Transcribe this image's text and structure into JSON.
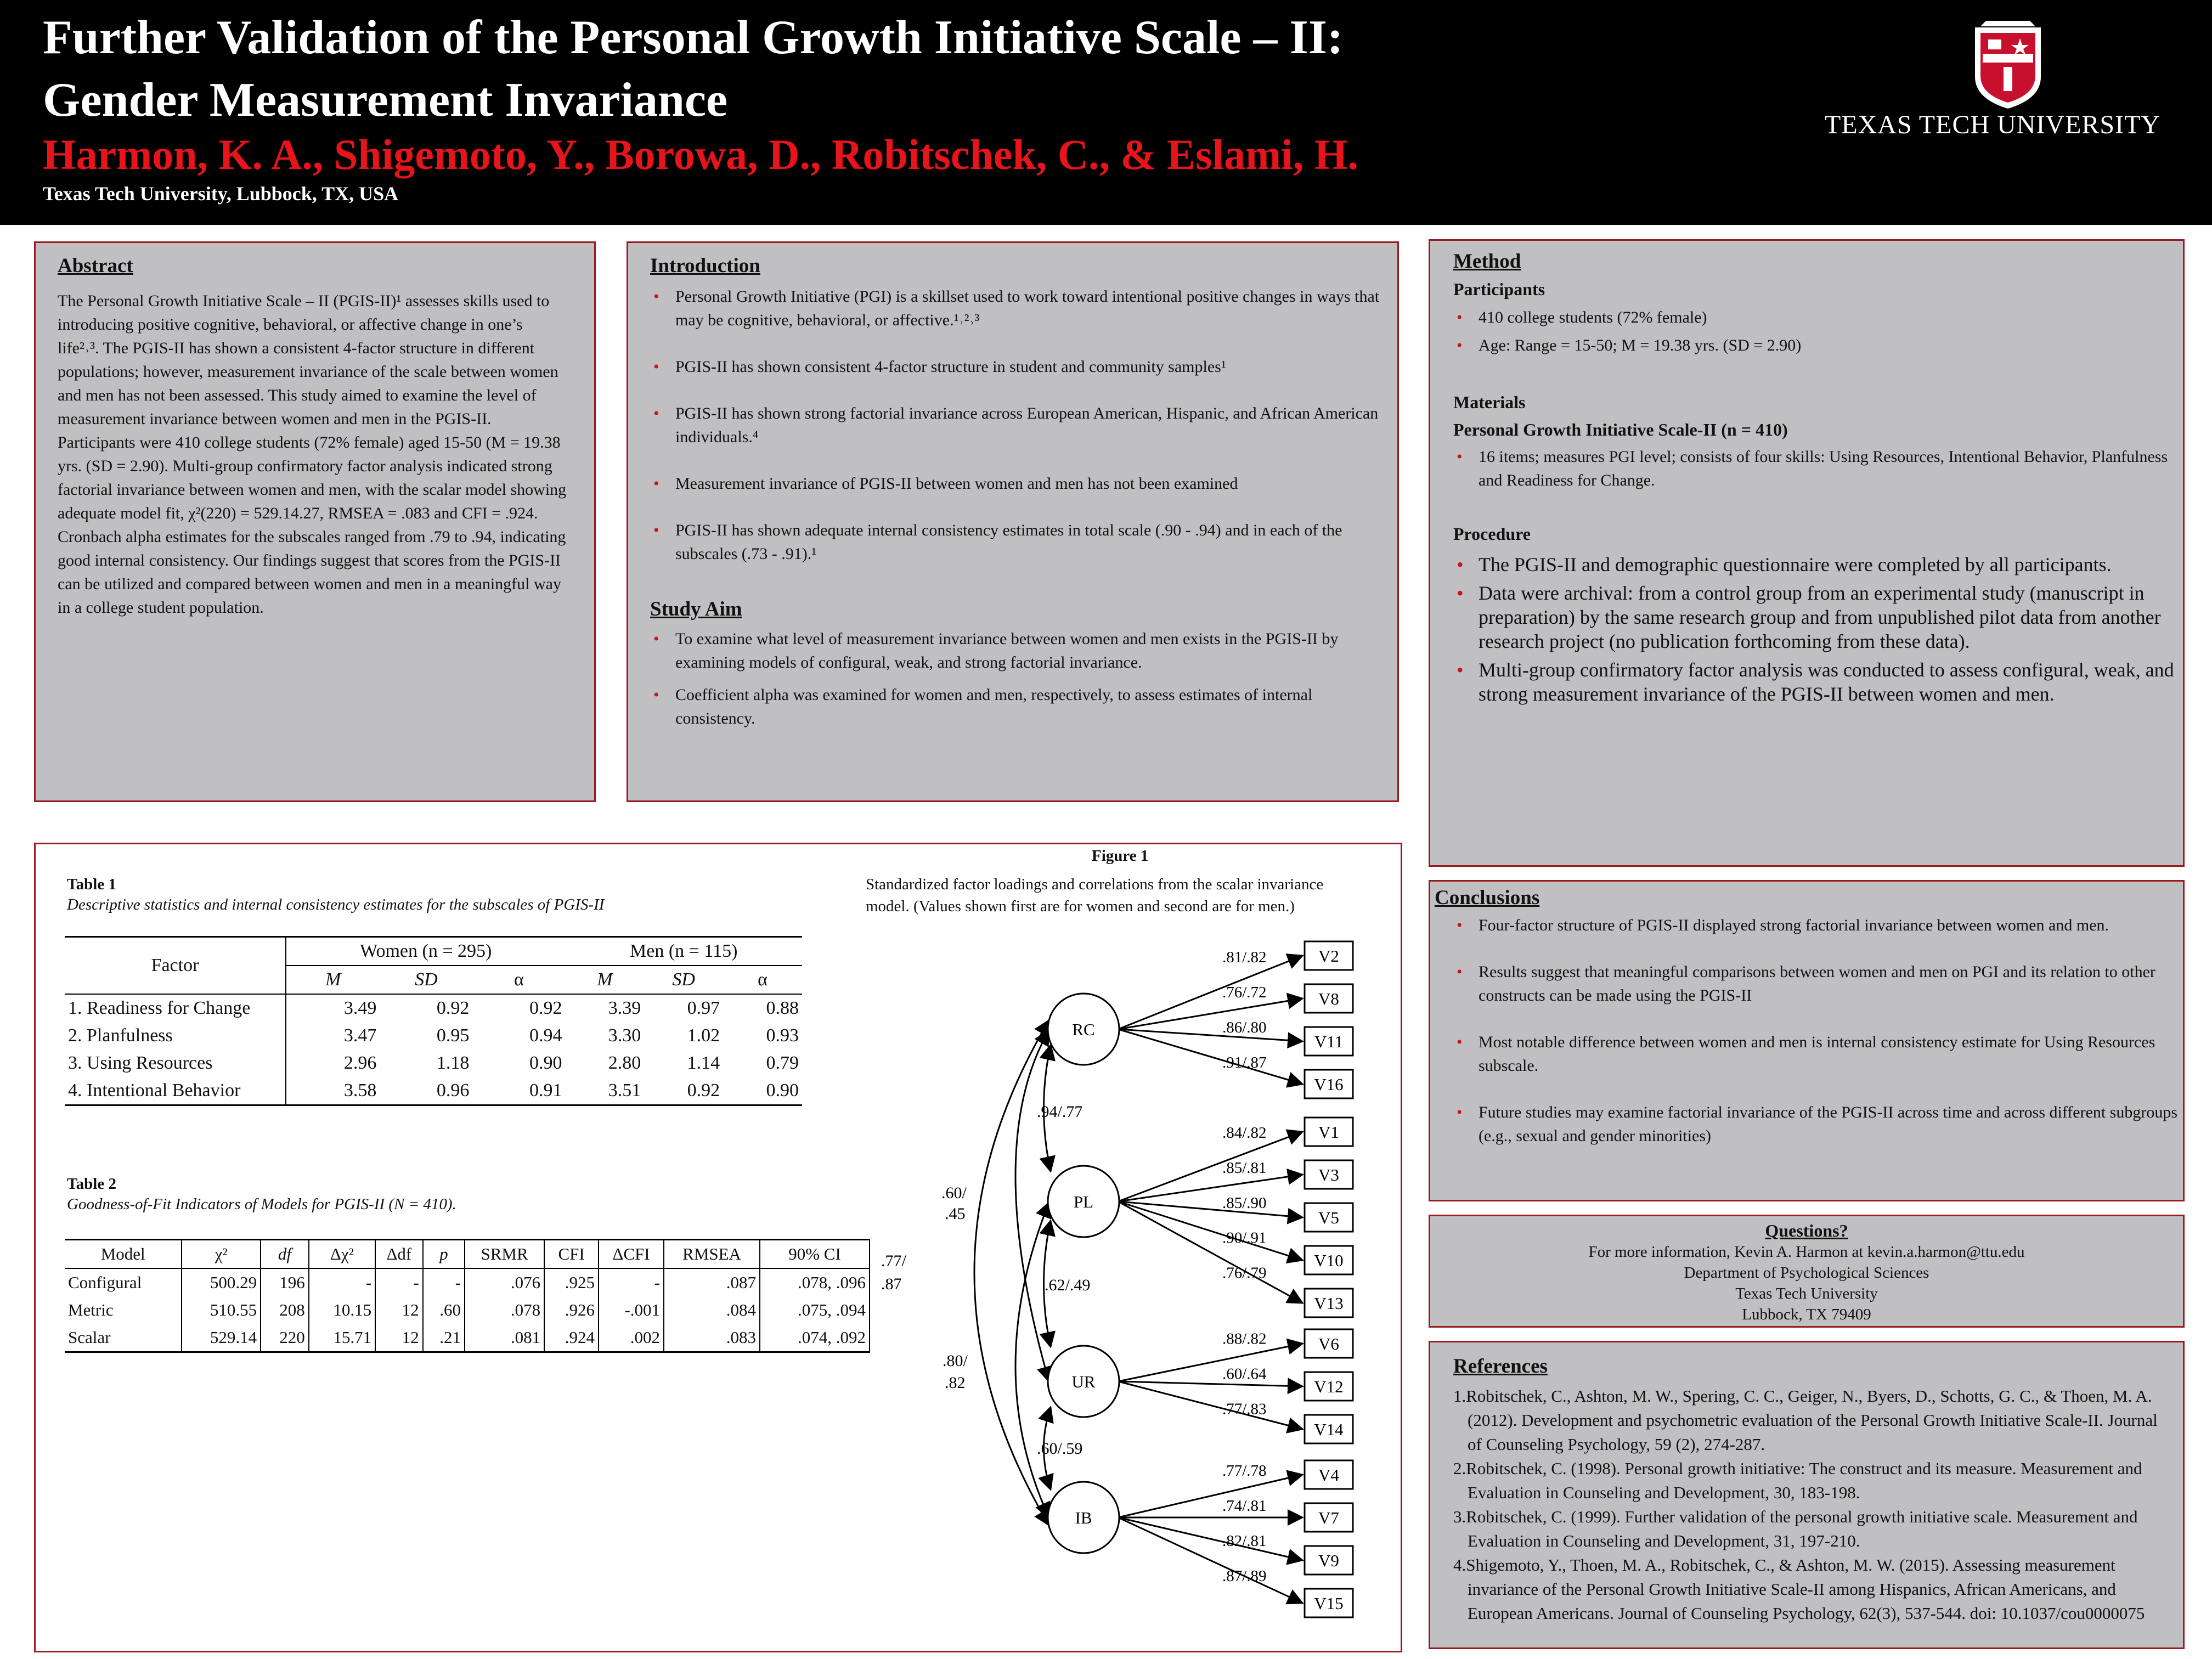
{
  "header": {
    "title_line1": "Further Validation of the Personal Growth Initiative Scale – II:",
    "title_line2": "Gender Measurement Invariance",
    "authors": "Harmon, K. A., Shigemoto, Y., Borowa, D., Robitschek, C., & Eslami, H.",
    "affiliation": "Texas Tech University, Lubbock, TX, USA",
    "university": "TEXAS TECH UNIVERSITY"
  },
  "abstract": {
    "heading": "Abstract",
    "body": "The Personal Growth Initiative Scale – II (PGIS-II)¹ assesses skills used to introducing positive cognitive, behavioral, or affective change in one’s life²˒³. The PGIS-II has shown a consistent 4-factor structure in different populations; however, measurement invariance of the scale between women and men has not been assessed. This study aimed to examine the level of measurement invariance between women and men in the PGIS-II. Participants were 410 college students (72% female) aged 15-50 (M = 19.38 yrs. (SD = 2.90). Multi-group confirmatory factor analysis indicated strong factorial invariance between women and men, with the scalar model showing adequate model fit, χ²(220) = 529.14.27, RMSEA = .083 and CFI = .924. Cronbach alpha estimates for the subscales ranged from .79 to .94, indicating good internal consistency. Our findings suggest that scores from the PGIS-II can be utilized and compared between women and men in a meaningful way in a college student population."
  },
  "introduction": {
    "heading": "Introduction",
    "items": [
      "Personal Growth Initiative (PGI) is a skillset used to work toward intentional positive changes in ways that may be cognitive, behavioral, or affective.¹˒²˒³",
      "PGIS-II has shown consistent 4-factor structure in student and community samples¹",
      "PGIS-II has shown strong factorial invariance across European American, Hispanic, and African American individuals.⁴",
      "Measurement invariance of PGIS-II between women and men has not been examined",
      "PGIS-II has shown adequate internal consistency estimates in total scale (.90 - .94) and in each of the subscales (.73 - .91).¹"
    ],
    "aim_heading": "Study Aim",
    "aim_items": [
      "To examine what level of measurement invariance between women and men exists in the PGIS-II by examining models of configural, weak, and strong factorial invariance.",
      "Coefficient alpha was examined for women and men, respectively, to assess estimates of internal consistency."
    ]
  },
  "method": {
    "heading": "Method",
    "participants_heading": "Participants",
    "participants_items": [
      "410 college students (72% female)",
      "Age: Range = 15-50; M = 19.38 yrs. (SD = 2.90)"
    ],
    "materials_heading": "Materials",
    "materials_sub": "Personal Growth Initiative Scale-II  (n = 410)",
    "materials_items": [
      "16 items; measures PGI level; consists of four skills: Using Resources, Intentional Behavior, Planfulness and Readiness for Change."
    ],
    "procedure_heading": "Procedure",
    "procedure_items": [
      "The PGIS-II  and demographic questionnaire were completed by all participants.",
      "Data were archival: from a control group from an experimental study (manuscript in preparation) by the same research group and from unpublished pilot data from another research project (no publication forthcoming from these data).",
      "Multi-group confirmatory factor analysis was conducted to assess configural, weak, and strong measurement invariance of the PGIS-II between women and men."
    ]
  },
  "table1": {
    "label": "Table 1",
    "caption": "Descriptive statistics and internal consistency estimates for the subscales of PGIS-II",
    "factor_header": "Factor",
    "women_header": "Women (n = 295)",
    "men_header": "Men (n = 115)",
    "sub_headers": [
      "M",
      "SD",
      "α",
      "M",
      "SD",
      "α"
    ],
    "rows": [
      [
        "1. Readiness for Change",
        "3.49",
        "0.92",
        "0.92",
        "3.39",
        "0.97",
        "0.88"
      ],
      [
        "2. Planfulness",
        "3.47",
        "0.95",
        "0.94",
        "3.30",
        "1.02",
        "0.93"
      ],
      [
        "3. Using Resources",
        "2.96",
        "1.18",
        "0.90",
        "2.80",
        "1.14",
        "0.79"
      ],
      [
        "4. Intentional Behavior",
        "3.58",
        "0.96",
        "0.91",
        "3.51",
        "0.92",
        "0.90"
      ]
    ]
  },
  "table2": {
    "label": "Table 2",
    "caption": "Goodness-of-Fit Indicators of Models for PGIS-II (N = 410).",
    "headers": [
      "Model",
      "χ²",
      "df",
      "Δχ²",
      "Δdf",
      "p",
      "SRMR",
      "CFI",
      "ΔCFI",
      "RMSEA",
      "90% CI"
    ],
    "rows": [
      [
        "Configural",
        "500.29",
        "196",
        "-",
        "-",
        "-",
        ".076",
        ".925",
        "-",
        ".087",
        ".078, .096"
      ],
      [
        "Metric",
        "510.55",
        "208",
        "10.15",
        "12",
        ".60",
        ".078",
        ".926",
        "-.001",
        ".084",
        ".075, .094"
      ],
      [
        "Scalar",
        "529.14",
        "220",
        "15.71",
        "12",
        ".21",
        ".081",
        ".924",
        ".002",
        ".083",
        ".074, .092"
      ]
    ]
  },
  "figure1": {
    "label": "Figure 1",
    "caption_line1": "Standardized factor loadings and correlations from the scalar invariance",
    "caption_line2": "model. (Values shown first are for women and second are for men.)",
    "factors": [
      {
        "name": "RC",
        "items": [
          "V2",
          "V8",
          "V11",
          "V16"
        ],
        "loadings": [
          ".81/.82",
          ".76/.72",
          ".86/.80",
          ".91/.87"
        ]
      },
      {
        "name": "PL",
        "items": [
          "V1",
          "V3",
          "V5",
          "V10",
          "V13"
        ],
        "loadings": [
          ".84/.82",
          ".85/.81",
          ".85/.90",
          ".90/.91",
          ".76/.79"
        ]
      },
      {
        "name": "UR",
        "items": [
          "V6",
          "V12",
          "V14"
        ],
        "loadings": [
          ".88/.82",
          ".60/.64",
          ".77/.83"
        ]
      },
      {
        "name": "IB",
        "items": [
          "V4",
          "V7",
          "V9",
          "V15"
        ],
        "loadings": [
          ".77/.78",
          ".74/.81",
          ".82/.81",
          ".87/.89"
        ]
      }
    ],
    "correlations": {
      "rc_pl": ".94/.77",
      "pl_ur": ".62/.49",
      "ur_ib": ".60/.59",
      "rc_ur_a": ".60/",
      "rc_ur_b": ".45",
      "pl_ib_a": ".80/",
      "pl_ib_b": ".82",
      "rc_ib_a": ".77/",
      "rc_ib_b": ".87"
    }
  },
  "conclusions": {
    "heading": "Conclusions",
    "items": [
      "Four-factor structure of PGIS-II displayed strong factorial invariance between women and men.",
      "Results suggest that meaningful comparisons between women and men on PGI and its relation to other constructs can be made using the PGIS-II",
      "Most notable difference between women and men is internal consistency estimate for Using Resources subscale.",
      "Future studies may examine factorial invariance of the PGIS-II across time and across different subgroups (e.g., sexual and gender minorities)"
    ]
  },
  "questions": {
    "heading": "Questions?",
    "lines": [
      "For more information, Kevin A. Harmon at kevin.a.harmon@ttu.edu",
      "Department of Psychological Sciences",
      "Texas Tech University",
      "Lubbock, TX 79409"
    ]
  },
  "references": {
    "heading": "References",
    "items": [
      "1.Robitschek, C., Ashton, M. W., Spering, C. C., Geiger, N., Byers, D., Schotts, G. C., & Thoen, M. A. (2012). Development and psychometric evaluation of the Personal Growth Initiative Scale-II. Journal of Counseling Psychology, 59 (2), 274-287.",
      "2.Robitschek, C. (1998). Personal growth initiative: The construct and its measure. Measurement and Evaluation in Counseling and Development, 30, 183-198.",
      "3.Robitschek, C. (1999). Further validation of the personal growth initiative scale. Measurement and Evaluation in Counseling and Development, 31, 197-210.",
      "4.Shigemoto, Y., Thoen, M. A., Robitschek, C., & Ashton, M. W. (2015). Assessing measurement invariance of the Personal Growth Initiative Scale-II among Hispanics, African Americans, and European Americans. Journal of Counseling Psychology, 62(3), 537-544. doi: 10.1037/cou0000075"
    ]
  },
  "colors": {
    "header_bg": "#000000",
    "authors": "#e8141b",
    "panel_bg": "#c0c0c2",
    "panel_border": "#9a1b1f",
    "bullet": "#c4161c"
  }
}
